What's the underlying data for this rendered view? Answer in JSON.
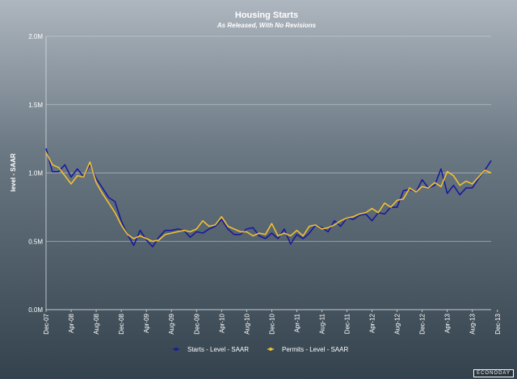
{
  "chart_data": {
    "type": "line",
    "title": "Housing Starts",
    "subtitle": "As Released, With No Revisions",
    "ylabel": "level - SAAR",
    "xlabel": "",
    "ylim": [
      0,
      2.0
    ],
    "y_ticks": [
      {
        "value": 0.0,
        "label": "0.0M"
      },
      {
        "value": 0.5,
        "label": "0.5M"
      },
      {
        "value": 1.0,
        "label": "1.0M"
      },
      {
        "value": 1.5,
        "label": "1.5M"
      },
      {
        "value": 2.0,
        "label": "2.0M"
      }
    ],
    "x_ticks": [
      {
        "index": 0,
        "label": "Dec-07"
      },
      {
        "index": 4,
        "label": "Apr-08"
      },
      {
        "index": 8,
        "label": "Aug-08"
      },
      {
        "index": 12,
        "label": "Dec-08"
      },
      {
        "index": 16,
        "label": "Apr-09"
      },
      {
        "index": 20,
        "label": "Aug-09"
      },
      {
        "index": 24,
        "label": "Dec-09"
      },
      {
        "index": 28,
        "label": "Apr-10"
      },
      {
        "index": 32,
        "label": "Aug-10"
      },
      {
        "index": 36,
        "label": "Dec-10"
      },
      {
        "index": 40,
        "label": "Apr-11"
      },
      {
        "index": 44,
        "label": "Aug-11"
      },
      {
        "index": 48,
        "label": "Dec-11"
      },
      {
        "index": 52,
        "label": "Apr-12"
      },
      {
        "index": 56,
        "label": "Aug-12"
      },
      {
        "index": 60,
        "label": "Dec-12"
      },
      {
        "index": 64,
        "label": "Apr-13"
      },
      {
        "index": 68,
        "label": "Aug-13"
      },
      {
        "index": 72,
        "label": "Dec-13"
      }
    ],
    "grid": true,
    "legend_position": "bottom",
    "series": [
      {
        "name": "Starts - Level - SAAR",
        "color": "#1a1a9e",
        "values": [
          1.18,
          1.01,
          1.01,
          1.06,
          0.97,
          1.03,
          0.97,
          1.06,
          0.96,
          0.89,
          0.82,
          0.79,
          0.65,
          0.55,
          0.47,
          0.58,
          0.51,
          0.46,
          0.53,
          0.58,
          0.58,
          0.59,
          0.58,
          0.53,
          0.57,
          0.56,
          0.59,
          0.61,
          0.66,
          0.59,
          0.55,
          0.55,
          0.59,
          0.6,
          0.54,
          0.52,
          0.56,
          0.52,
          0.59,
          0.48,
          0.55,
          0.52,
          0.56,
          0.62,
          0.6,
          0.57,
          0.65,
          0.61,
          0.67,
          0.66,
          0.69,
          0.7,
          0.65,
          0.71,
          0.7,
          0.75,
          0.75,
          0.87,
          0.88,
          0.86,
          0.95,
          0.89,
          0.91,
          1.03,
          0.85,
          0.91,
          0.84,
          0.89,
          0.89,
          0.96,
          1.02,
          1.09
        ]
      },
      {
        "name": "Permits - Level - SAAR",
        "color": "#f2c02f",
        "values": [
          1.15,
          1.06,
          1.04,
          0.98,
          0.92,
          0.98,
          0.97,
          1.08,
          0.93,
          0.85,
          0.78,
          0.71,
          0.62,
          0.55,
          0.52,
          0.54,
          0.52,
          0.5,
          0.51,
          0.55,
          0.56,
          0.57,
          0.58,
          0.57,
          0.59,
          0.65,
          0.61,
          0.62,
          0.68,
          0.61,
          0.59,
          0.57,
          0.57,
          0.54,
          0.56,
          0.55,
          0.63,
          0.54,
          0.56,
          0.54,
          0.58,
          0.54,
          0.61,
          0.62,
          0.59,
          0.6,
          0.62,
          0.65,
          0.67,
          0.68,
          0.7,
          0.71,
          0.74,
          0.71,
          0.78,
          0.75,
          0.8,
          0.81,
          0.89,
          0.86,
          0.9,
          0.89,
          0.93,
          0.9,
          1.01,
          0.98,
          0.91,
          0.94,
          0.92,
          0.97,
          1.02,
          1.0
        ]
      }
    ]
  },
  "watermark": "ECONODAY"
}
